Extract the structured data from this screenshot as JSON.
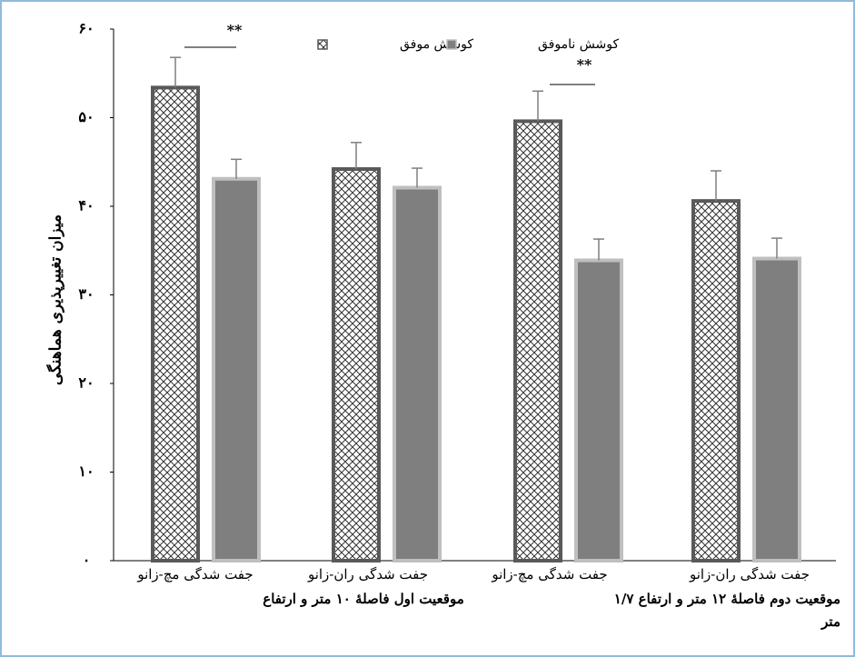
{
  "chart_data": {
    "type": "bar",
    "y_label": "میزان تغییرپذیری هماهنگی",
    "categories": [
      "جفت شدگی مچ-زانو",
      "جفت شدگی ران-زانو",
      "جفت شدگی مچ-زانو",
      "جفت شدگی ران-زانو"
    ],
    "group_labels": [
      "موقعیت اول فاصلهٔ ۱۰ متر و ارتفاع",
      "موقعیت دوم فاصلهٔ ۱۲ متر و ارتفاع ۱/۷ متر"
    ],
    "series": [
      {
        "name": "کوشش موفق",
        "color": "#595959",
        "values": [
          53.4,
          44.2,
          49.6,
          40.6
        ],
        "errors": [
          3.4,
          3.0,
          3.4,
          3.4
        ]
      },
      {
        "name": "کوشش ناموفق",
        "color": "#7f7f7f",
        "values": [
          43.1,
          42.1,
          33.9,
          34.1
        ],
        "errors": [
          2.2,
          2.2,
          2.4,
          2.3
        ]
      }
    ],
    "annotations": [
      "**",
      "**"
    ],
    "ylim": [
      0,
      60
    ],
    "yticks": [
      {
        "value": 0,
        "label": "۰"
      },
      {
        "value": 10,
        "label": "۱۰"
      },
      {
        "value": 20,
        "label": "۲۰"
      },
      {
        "value": 30,
        "label": "۳۰"
      },
      {
        "value": 40,
        "label": "۴۰"
      },
      {
        "value": 50,
        "label": "۵۰"
      },
      {
        "value": 60,
        "label": "۶۰"
      }
    ]
  }
}
